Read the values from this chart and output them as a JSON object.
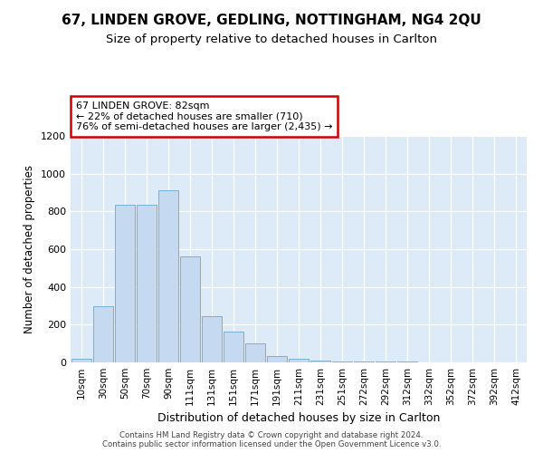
{
  "title_line1": "67, LINDEN GROVE, GEDLING, NOTTINGHAM, NG4 2QU",
  "title_line2": "Size of property relative to detached houses in Carlton",
  "xlabel": "Distribution of detached houses by size in Carlton",
  "ylabel": "Number of detached properties",
  "categories": [
    "10sqm",
    "30sqm",
    "50sqm",
    "70sqm",
    "90sqm",
    "111sqm",
    "131sqm",
    "151sqm",
    "171sqm",
    "191sqm",
    "211sqm",
    "231sqm",
    "251sqm",
    "272sqm",
    "292sqm",
    "312sqm",
    "332sqm",
    "352sqm",
    "372sqm",
    "392sqm",
    "412sqm"
  ],
  "values": [
    20,
    300,
    835,
    835,
    910,
    560,
    245,
    165,
    100,
    35,
    20,
    10,
    5,
    5,
    5,
    5,
    0,
    0,
    0,
    0,
    0
  ],
  "bar_color": "#c5d9f0",
  "bar_edge_color": "#7bafd4",
  "annotation_text": "67 LINDEN GROVE: 82sqm\n← 22% of detached houses are smaller (710)\n76% of semi-detached houses are larger (2,435) →",
  "annotation_box_facecolor": "#ffffff",
  "annotation_box_edge_color": "#cc0000",
  "ylim": [
    0,
    1200
  ],
  "yticks": [
    0,
    200,
    400,
    600,
    800,
    1000,
    1200
  ],
  "plot_bg_color": "#ddeaf7",
  "fig_bg_color": "#ffffff",
  "grid_color": "#ffffff",
  "footer_text": "Contains HM Land Registry data © Crown copyright and database right 2024.\nContains public sector information licensed under the Open Government Licence v3.0."
}
